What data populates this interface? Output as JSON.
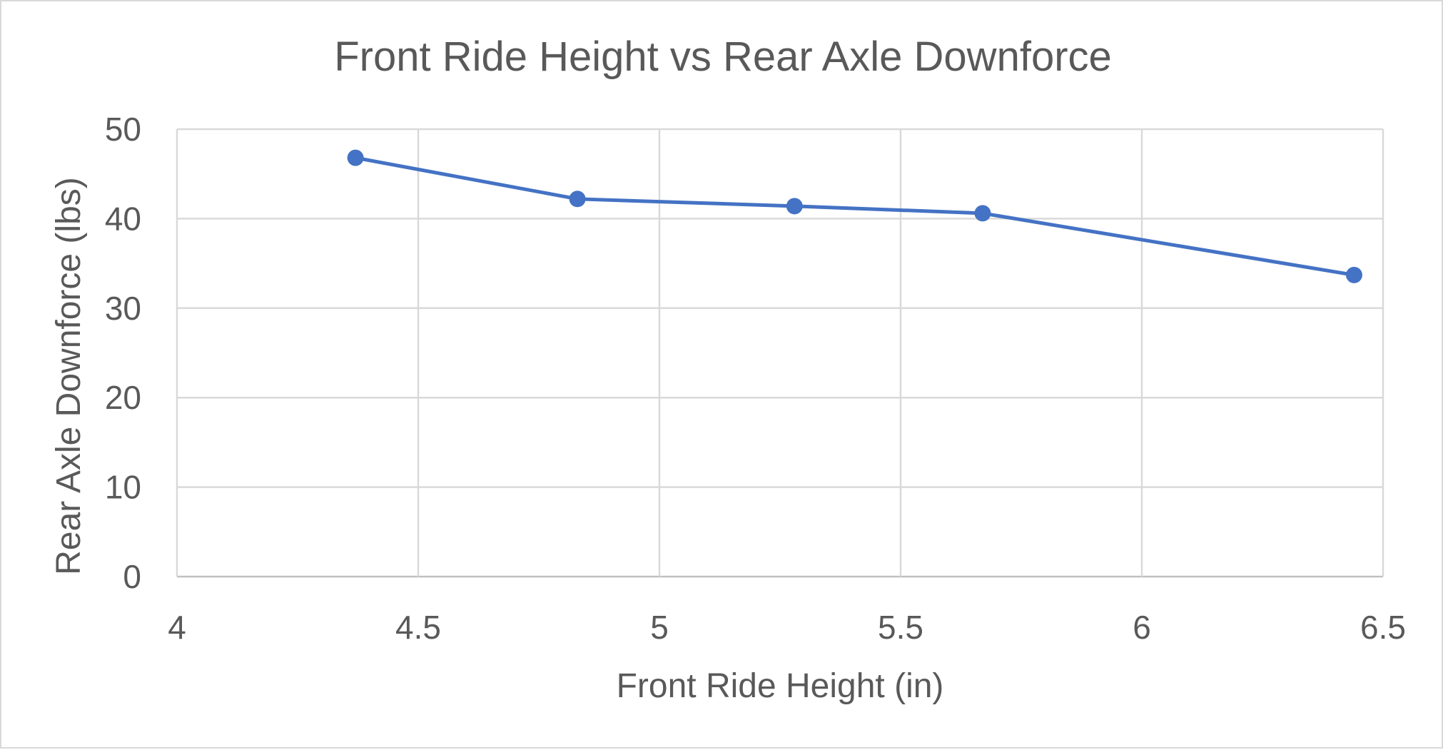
{
  "chart_data": {
    "type": "scatter",
    "title": "Front Ride Height vs Rear Axle Downforce",
    "xlabel": "Front Ride Height (in)",
    "ylabel": "Rear Axle Downforce (lbs)",
    "xlim": [
      4,
      6.5
    ],
    "ylim": [
      0,
      50
    ],
    "x_ticks": [
      "4",
      "4.5",
      "5",
      "5.5",
      "6",
      "6.5"
    ],
    "y_ticks": [
      "0",
      "10",
      "20",
      "30",
      "40",
      "50"
    ],
    "grid": true,
    "legend": "none",
    "series": [
      {
        "color": "#4472c4",
        "line": true,
        "markers": true,
        "x": [
          4.37,
          4.83,
          5.28,
          5.67,
          6.44
        ],
        "y": [
          46.8,
          42.2,
          41.4,
          40.6,
          33.7
        ]
      }
    ]
  }
}
